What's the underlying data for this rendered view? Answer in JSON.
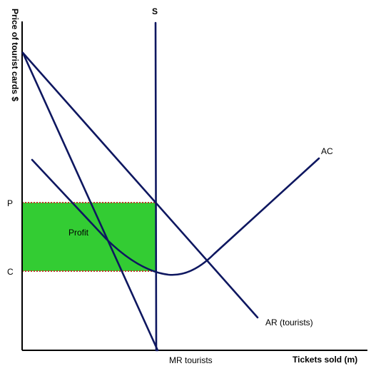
{
  "axes": {
    "y_label": "Price of tourist cards $",
    "x_label": "Tickets sold (m)"
  },
  "price_levels": {
    "p_label": "P",
    "c_label": "C"
  },
  "curves": {
    "supply_label": "S",
    "ac_label": "AC",
    "ar_label": "AR (tourists)",
    "mr_label": "MR tourists"
  },
  "region": {
    "profit_label": "Profit",
    "fill_color": "#33cc33"
  },
  "colors": {
    "curve": "#0e1760",
    "boundary_dots": "#c0392b"
  }
}
